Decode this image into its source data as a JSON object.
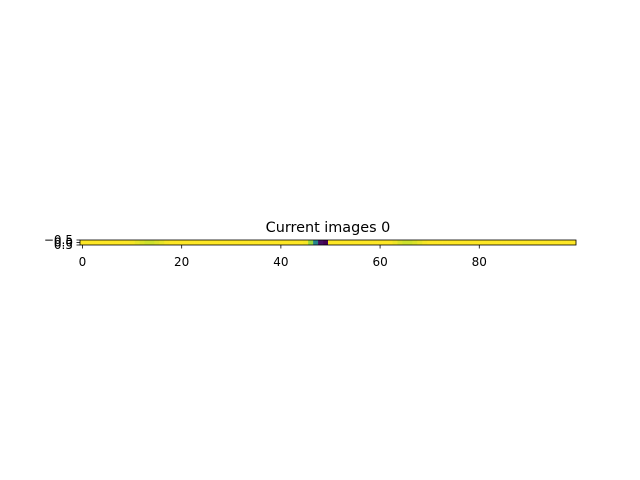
{
  "chart_data": {
    "type": "heatmap",
    "title": "Current images 0",
    "xlabel": "",
    "ylabel": "",
    "colormap": "viridis",
    "xlim": [
      -0.5,
      99.5
    ],
    "ylim": [
      0.5,
      -0.5
    ],
    "x_ticks": [
      0,
      20,
      40,
      60,
      80
    ],
    "x_tick_labels": [
      "0",
      "20",
      "40",
      "60",
      "80"
    ],
    "y_ticks": [
      -0.5,
      0.0,
      0.5
    ],
    "y_tick_labels": [
      "−0.5",
      "0.0",
      "0.5"
    ],
    "grid": false,
    "n_columns": 100,
    "values": [
      1.0,
      1.0,
      1.0,
      1.0,
      1.0,
      1.0,
      1.0,
      1.0,
      1.0,
      1.0,
      0.99,
      0.97,
      0.95,
      0.93,
      0.93,
      0.95,
      0.97,
      0.99,
      1.0,
      1.0,
      1.0,
      1.0,
      1.0,
      1.0,
      1.0,
      1.0,
      1.0,
      1.0,
      1.0,
      1.0,
      1.0,
      1.0,
      1.0,
      1.0,
      1.0,
      1.0,
      1.0,
      1.0,
      1.0,
      1.0,
      1.0,
      1.0,
      1.0,
      1.0,
      1.0,
      0.99,
      0.85,
      0.45,
      0.05,
      0.0,
      1.0,
      1.0,
      1.0,
      1.0,
      1.0,
      1.0,
      1.0,
      1.0,
      1.0,
      1.0,
      1.0,
      1.0,
      1.0,
      0.98,
      0.95,
      0.93,
      0.93,
      0.95,
      0.97,
      0.99,
      1.0,
      1.0,
      1.0,
      1.0,
      1.0,
      1.0,
      1.0,
      1.0,
      1.0,
      1.0,
      1.0,
      1.0,
      1.0,
      1.0,
      1.0,
      1.0,
      1.0,
      1.0,
      1.0,
      1.0,
      1.0,
      1.0,
      1.0,
      1.0,
      1.0,
      1.0,
      1.0,
      1.0,
      1.0,
      1.0
    ]
  }
}
